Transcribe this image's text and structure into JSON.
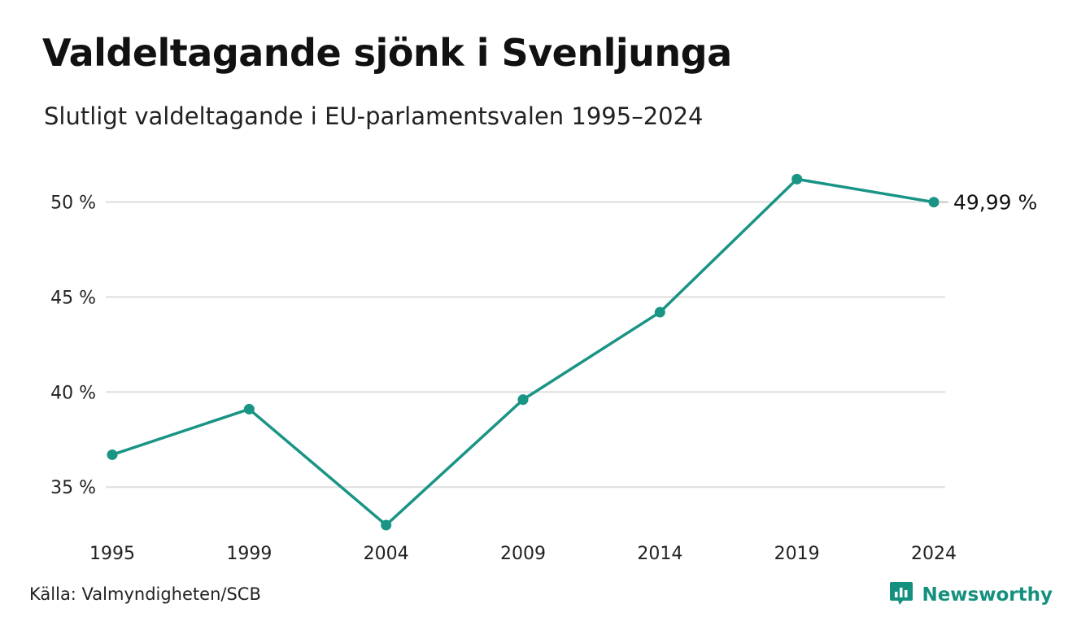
{
  "header": {
    "title": "Valdeltagande sjönk i Svenljunga",
    "subtitle": "Slutligt valdeltagande i EU-parlamentsvalen 1995–2024"
  },
  "footer": {
    "source": "Källa: Valmyndigheten/SCB",
    "brand": "Newsworthy",
    "brand_icon": "bar-chart-speech-bubble-icon",
    "brand_color": "#14907f"
  },
  "chart_data": {
    "type": "line",
    "title": "Valdeltagande sjönk i Svenljunga",
    "subtitle": "Slutligt valdeltagande i EU-parlamentsvalen 1995–2024",
    "xlabel": "",
    "ylabel": "",
    "categories": [
      "1995",
      "1999",
      "2004",
      "2009",
      "2014",
      "2019",
      "2024"
    ],
    "series": [
      {
        "values": [
          36.7,
          39.1,
          33.0,
          39.6,
          44.2,
          51.2,
          49.99
        ],
        "color": "#1a9485"
      }
    ],
    "y_ticks": [
      35,
      40,
      45,
      50
    ],
    "y_tick_labels": [
      "35 %",
      "40 %",
      "45 %",
      "50 %"
    ],
    "ylim": [
      32.4,
      52.5
    ],
    "grid": true,
    "end_label": "49,99 %"
  }
}
